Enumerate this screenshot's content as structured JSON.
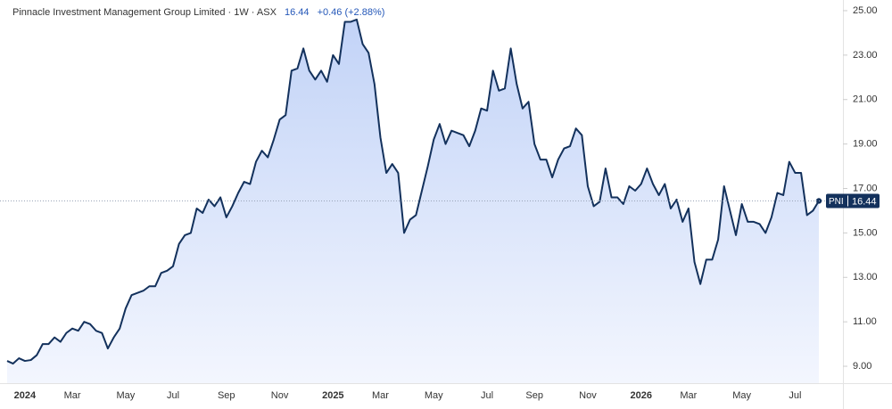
{
  "chart_data": {
    "type": "area",
    "header": "Pinnacle Investment Management Group Limited · 1W · ASX",
    "price": 16.44,
    "change": "+0.46 (+2.88%)",
    "symbol": "PNI",
    "color": "#13315c",
    "categories": [
      null,
      null,
      null,
      "2024",
      null,
      null,
      null,
      null,
      null,
      null,
      null,
      "Mar",
      null,
      null,
      null,
      null,
      null,
      null,
      null,
      null,
      "May",
      null,
      null,
      null,
      null,
      null,
      null,
      null,
      "Jul",
      null,
      null,
      null,
      null,
      null,
      null,
      null,
      null,
      "Sep",
      null,
      null,
      null,
      null,
      null,
      null,
      null,
      null,
      "Nov",
      null,
      null,
      null,
      null,
      null,
      null,
      null,
      null,
      "2025",
      null,
      null,
      null,
      null,
      null,
      null,
      null,
      "Mar",
      null,
      null,
      null,
      null,
      null,
      null,
      null,
      null,
      "May",
      null,
      null,
      null,
      null,
      null,
      null,
      null,
      null,
      "Jul",
      null,
      null,
      null,
      null,
      null,
      null,
      null,
      "Sep",
      null,
      null,
      null,
      null,
      null,
      null,
      null,
      null,
      "Nov",
      null,
      null,
      null,
      null,
      null,
      null,
      null,
      null,
      "2026",
      null,
      null,
      null,
      null,
      null,
      null,
      null,
      "Mar",
      null,
      null,
      null,
      null,
      null,
      null,
      null,
      null,
      "May",
      null,
      null,
      null,
      null,
      null,
      null,
      null,
      null,
      "Jul",
      null,
      null,
      null,
      null
    ],
    "values": [
      9.24,
      9.12,
      9.36,
      9.24,
      9.28,
      9.5,
      10.0,
      10.0,
      10.3,
      10.1,
      10.5,
      10.7,
      10.6,
      11.0,
      10.9,
      10.6,
      10.5,
      9.8,
      10.3,
      10.7,
      11.6,
      12.2,
      12.3,
      12.4,
      12.6,
      12.6,
      13.2,
      13.3,
      13.5,
      14.5,
      14.9,
      15.0,
      16.1,
      15.9,
      16.5,
      16.2,
      16.6,
      15.7,
      16.2,
      16.8,
      17.3,
      17.2,
      18.2,
      18.7,
      18.4,
      19.2,
      20.1,
      20.3,
      22.3,
      22.4,
      23.3,
      22.3,
      21.9,
      22.3,
      21.8,
      23.0,
      22.6,
      24.5,
      24.5,
      24.6,
      23.5,
      23.1,
      21.7,
      19.3,
      17.7,
      18.1,
      17.7,
      15.0,
      15.6,
      15.8,
      16.9,
      18.0,
      19.2,
      19.9,
      19.0,
      19.6,
      19.5,
      19.4,
      18.9,
      19.6,
      20.6,
      20.5,
      22.3,
      21.4,
      21.5,
      23.3,
      21.7,
      20.6,
      20.9,
      19.0,
      18.3,
      18.3,
      17.5,
      18.3,
      18.8,
      18.9,
      19.7,
      19.4,
      17.1,
      16.2,
      16.4,
      17.9,
      16.6,
      16.6,
      16.3,
      17.1,
      16.9,
      17.2,
      17.9,
      17.2,
      16.7,
      17.2,
      16.1,
      16.5,
      15.5,
      16.1,
      13.7,
      12.7,
      13.8,
      13.8,
      14.7,
      17.1,
      16.0,
      14.9,
      16.3,
      15.5,
      15.5,
      15.4,
      15.0,
      15.7,
      16.8,
      16.7,
      18.2,
      17.7,
      17.7,
      15.8,
      16.0,
      16.44
    ],
    "ylim": [
      8.24,
      25.48
    ],
    "yticks": [
      {
        "value": 9,
        "label": "9.00"
      },
      {
        "value": 11,
        "label": "11.00"
      },
      {
        "value": 13,
        "label": "13.00"
      },
      {
        "value": 15,
        "label": "15.00"
      },
      {
        "value": 17,
        "label": "17.00"
      },
      {
        "value": 19,
        "label": "19.00"
      },
      {
        "value": 21,
        "label": "21.00"
      },
      {
        "value": 23,
        "label": "23.00"
      },
      {
        "value": 25,
        "label": "25.00"
      }
    ]
  }
}
